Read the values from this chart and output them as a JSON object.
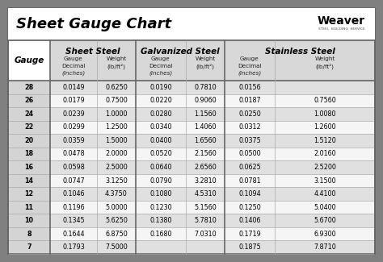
{
  "title": "Sheet Gauge Chart",
  "bg_outer": "#808080",
  "bg_inner": "#ffffff",
  "row_bg_odd": "#e0e0e0",
  "row_bg_even": "#f5f5f5",
  "gauges": [
    28,
    26,
    24,
    22,
    20,
    18,
    16,
    14,
    12,
    11,
    10,
    8,
    7
  ],
  "sheet_steel_decimal": [
    "0.0149",
    "0.0179",
    "0.0239",
    "0.0299",
    "0.0359",
    "0.0478",
    "0.0598",
    "0.0747",
    "0.1046",
    "0.1196",
    "0.1345",
    "0.1644",
    "0.1793"
  ],
  "sheet_steel_weight": [
    "0.6250",
    "0.7500",
    "1.0000",
    "1.2500",
    "1.5000",
    "2.0000",
    "2.5000",
    "3.1250",
    "4.3750",
    "5.0000",
    "5.6250",
    "6.8750",
    "7.5000"
  ],
  "galv_decimal": [
    "0.0190",
    "0.0220",
    "0.0280",
    "0.0340",
    "0.0400",
    "0.0520",
    "0.0640",
    "0.0790",
    "0.1080",
    "0.1230",
    "0.1380",
    "0.1680",
    ""
  ],
  "galv_weight": [
    "0.7810",
    "0.9060",
    "1.1560",
    "1.4060",
    "1.6560",
    "2.1560",
    "2.6560",
    "3.2810",
    "4.5310",
    "5.1560",
    "5.7810",
    "7.0310",
    ""
  ],
  "ss_decimal": [
    "0.0156",
    "0.0187",
    "0.0250",
    "0.0312",
    "0.0375",
    "0.0500",
    "0.0625",
    "0.0781",
    "0.1094",
    "0.1250",
    "0.1406",
    "0.1719",
    "0.1875"
  ],
  "ss_weight": [
    "",
    "0.7560",
    "1.0080",
    "1.2600",
    "1.5120",
    "2.0160",
    "2.5200",
    "3.1500",
    "4.4100",
    "5.0400",
    "5.6700",
    "6.9300",
    "7.8710"
  ]
}
